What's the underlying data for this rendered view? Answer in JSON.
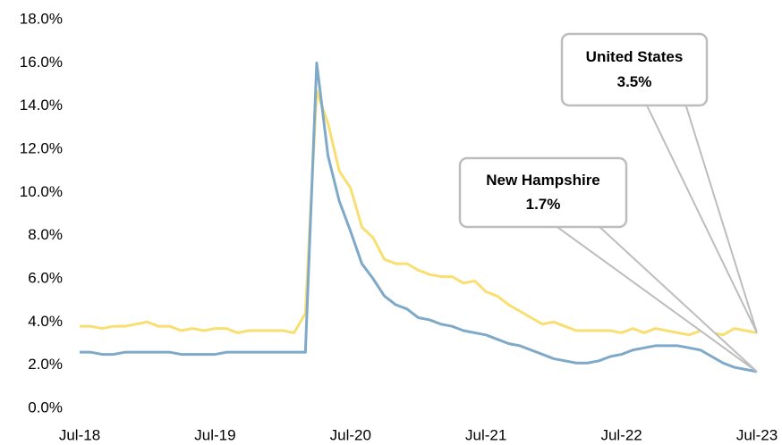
{
  "chart_data": {
    "type": "line",
    "categories": [
      "Jul-18",
      null,
      null,
      null,
      null,
      null,
      null,
      null,
      null,
      null,
      null,
      null,
      "Jul-19",
      null,
      null,
      null,
      null,
      null,
      null,
      null,
      null,
      null,
      null,
      null,
      "Jul-20",
      null,
      null,
      null,
      null,
      null,
      null,
      null,
      null,
      null,
      null,
      null,
      "Jul-21",
      null,
      null,
      null,
      null,
      null,
      null,
      null,
      null,
      null,
      null,
      null,
      "Jul-22",
      null,
      null,
      null,
      null,
      null,
      null,
      null,
      null,
      null,
      null,
      null,
      "Jul-23"
    ],
    "series": [
      {
        "name": "New Hampshire",
        "color": "#7ea9c9",
        "values": [
          2.6,
          2.6,
          2.5,
          2.5,
          2.6,
          2.6,
          2.6,
          2.6,
          2.6,
          2.5,
          2.5,
          2.5,
          2.5,
          2.6,
          2.6,
          2.6,
          2.6,
          2.6,
          2.6,
          2.6,
          2.6,
          16.0,
          11.7,
          9.6,
          8.2,
          6.7,
          6.0,
          5.2,
          4.8,
          4.6,
          4.2,
          4.1,
          3.9,
          3.8,
          3.6,
          3.5,
          3.4,
          3.2,
          3.0,
          2.9,
          2.7,
          2.5,
          2.3,
          2.2,
          2.1,
          2.1,
          2.2,
          2.4,
          2.5,
          2.7,
          2.8,
          2.9,
          2.9,
          2.9,
          2.8,
          2.7,
          2.4,
          2.1,
          1.9,
          1.8,
          1.7
        ]
      },
      {
        "name": "United States",
        "color": "#f9df72",
        "values": [
          3.8,
          3.8,
          3.7,
          3.8,
          3.8,
          3.9,
          4.0,
          3.8,
          3.8,
          3.6,
          3.7,
          3.6,
          3.7,
          3.7,
          3.5,
          3.6,
          3.6,
          3.6,
          3.6,
          3.5,
          4.4,
          14.7,
          13.2,
          11.0,
          10.2,
          8.4,
          7.9,
          6.9,
          6.7,
          6.7,
          6.4,
          6.2,
          6.1,
          6.1,
          5.8,
          5.9,
          5.4,
          5.2,
          4.8,
          4.5,
          4.2,
          3.9,
          4.0,
          3.8,
          3.6,
          3.6,
          3.6,
          3.6,
          3.5,
          3.7,
          3.5,
          3.7,
          3.6,
          3.5,
          3.4,
          3.6,
          3.5,
          3.4,
          3.7,
          3.6,
          3.5
        ]
      }
    ],
    "annotations": [
      {
        "text": "New Hampshire",
        "value_label": "1.7%"
      },
      {
        "text": "United States",
        "value_label": "3.5%"
      }
    ],
    "ylim": [
      0,
      18
    ],
    "yticks": [
      {
        "value": 0,
        "label": "0.0%"
      },
      {
        "value": 2,
        "label": "2.0%"
      },
      {
        "value": 4,
        "label": "4.0%"
      },
      {
        "value": 6,
        "label": "6.0%"
      },
      {
        "value": 8,
        "label": "8.0%"
      },
      {
        "value": 10,
        "label": "10.0%"
      },
      {
        "value": 12,
        "label": "12.0%"
      },
      {
        "value": 14,
        "label": "14.0%"
      },
      {
        "value": 16,
        "label": "16.0%"
      },
      {
        "value": 18,
        "label": "18.0%"
      }
    ],
    "grid": false
  }
}
